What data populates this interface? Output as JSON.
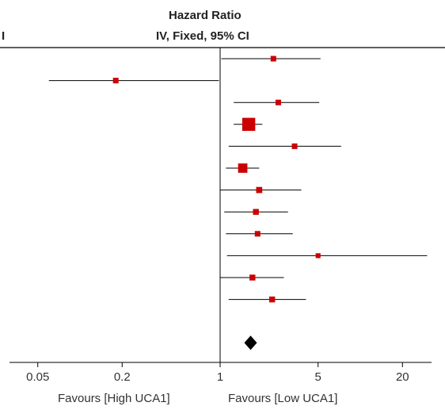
{
  "chart_data": {
    "type": "forest",
    "header": {
      "title": "Hazard Ratio",
      "method": "IV, Fixed, 95% CI",
      "clip_mark": "I"
    },
    "x_axis": {
      "scale": "log",
      "xlim": [
        0.02,
        40
      ],
      "ticks": [
        0.05,
        0.2,
        1,
        5,
        20
      ],
      "tick_labels": [
        "0.05",
        "0.2",
        "1",
        "5",
        "20"
      ],
      "reference_line": 1
    },
    "favours_left": "Favours [High UCA1]",
    "favours_right": "Favours [Low UCA1]",
    "colors": {
      "study_marker": "#cc0000",
      "summary_marker": "#000000",
      "lines": "#000000"
    },
    "studies": [
      {
        "hr": 2.4,
        "ci": [
          1.02,
          5.2
        ],
        "weight": 0.5
      },
      {
        "hr": 0.18,
        "ci": [
          0.06,
          0.98
        ],
        "weight": 0.5
      },
      {
        "hr": 2.6,
        "ci": [
          1.25,
          5.1
        ],
        "weight": 0.5
      },
      {
        "hr": 1.6,
        "ci": [
          1.25,
          2.0
        ],
        "weight": 6.0
      },
      {
        "hr": 3.4,
        "ci": [
          1.15,
          7.3
        ],
        "weight": 0.5
      },
      {
        "hr": 1.45,
        "ci": [
          1.1,
          1.9
        ],
        "weight": 2.5
      },
      {
        "hr": 1.9,
        "ci": [
          1.0,
          3.8
        ],
        "weight": 0.7
      },
      {
        "hr": 1.8,
        "ci": [
          1.07,
          3.05
        ],
        "weight": 0.6
      },
      {
        "hr": 1.85,
        "ci": [
          1.1,
          3.3
        ],
        "weight": 0.5
      },
      {
        "hr": 5.0,
        "ci": [
          1.12,
          30.0
        ],
        "weight": 0.3
      },
      {
        "hr": 1.7,
        "ci": [
          1.0,
          2.85
        ],
        "weight": 0.6
      },
      {
        "hr": 2.35,
        "ci": [
          1.15,
          4.1
        ],
        "weight": 0.6
      }
    ],
    "summary": {
      "hr": 1.65,
      "ci": [
        1.45,
        1.9
      ]
    }
  }
}
